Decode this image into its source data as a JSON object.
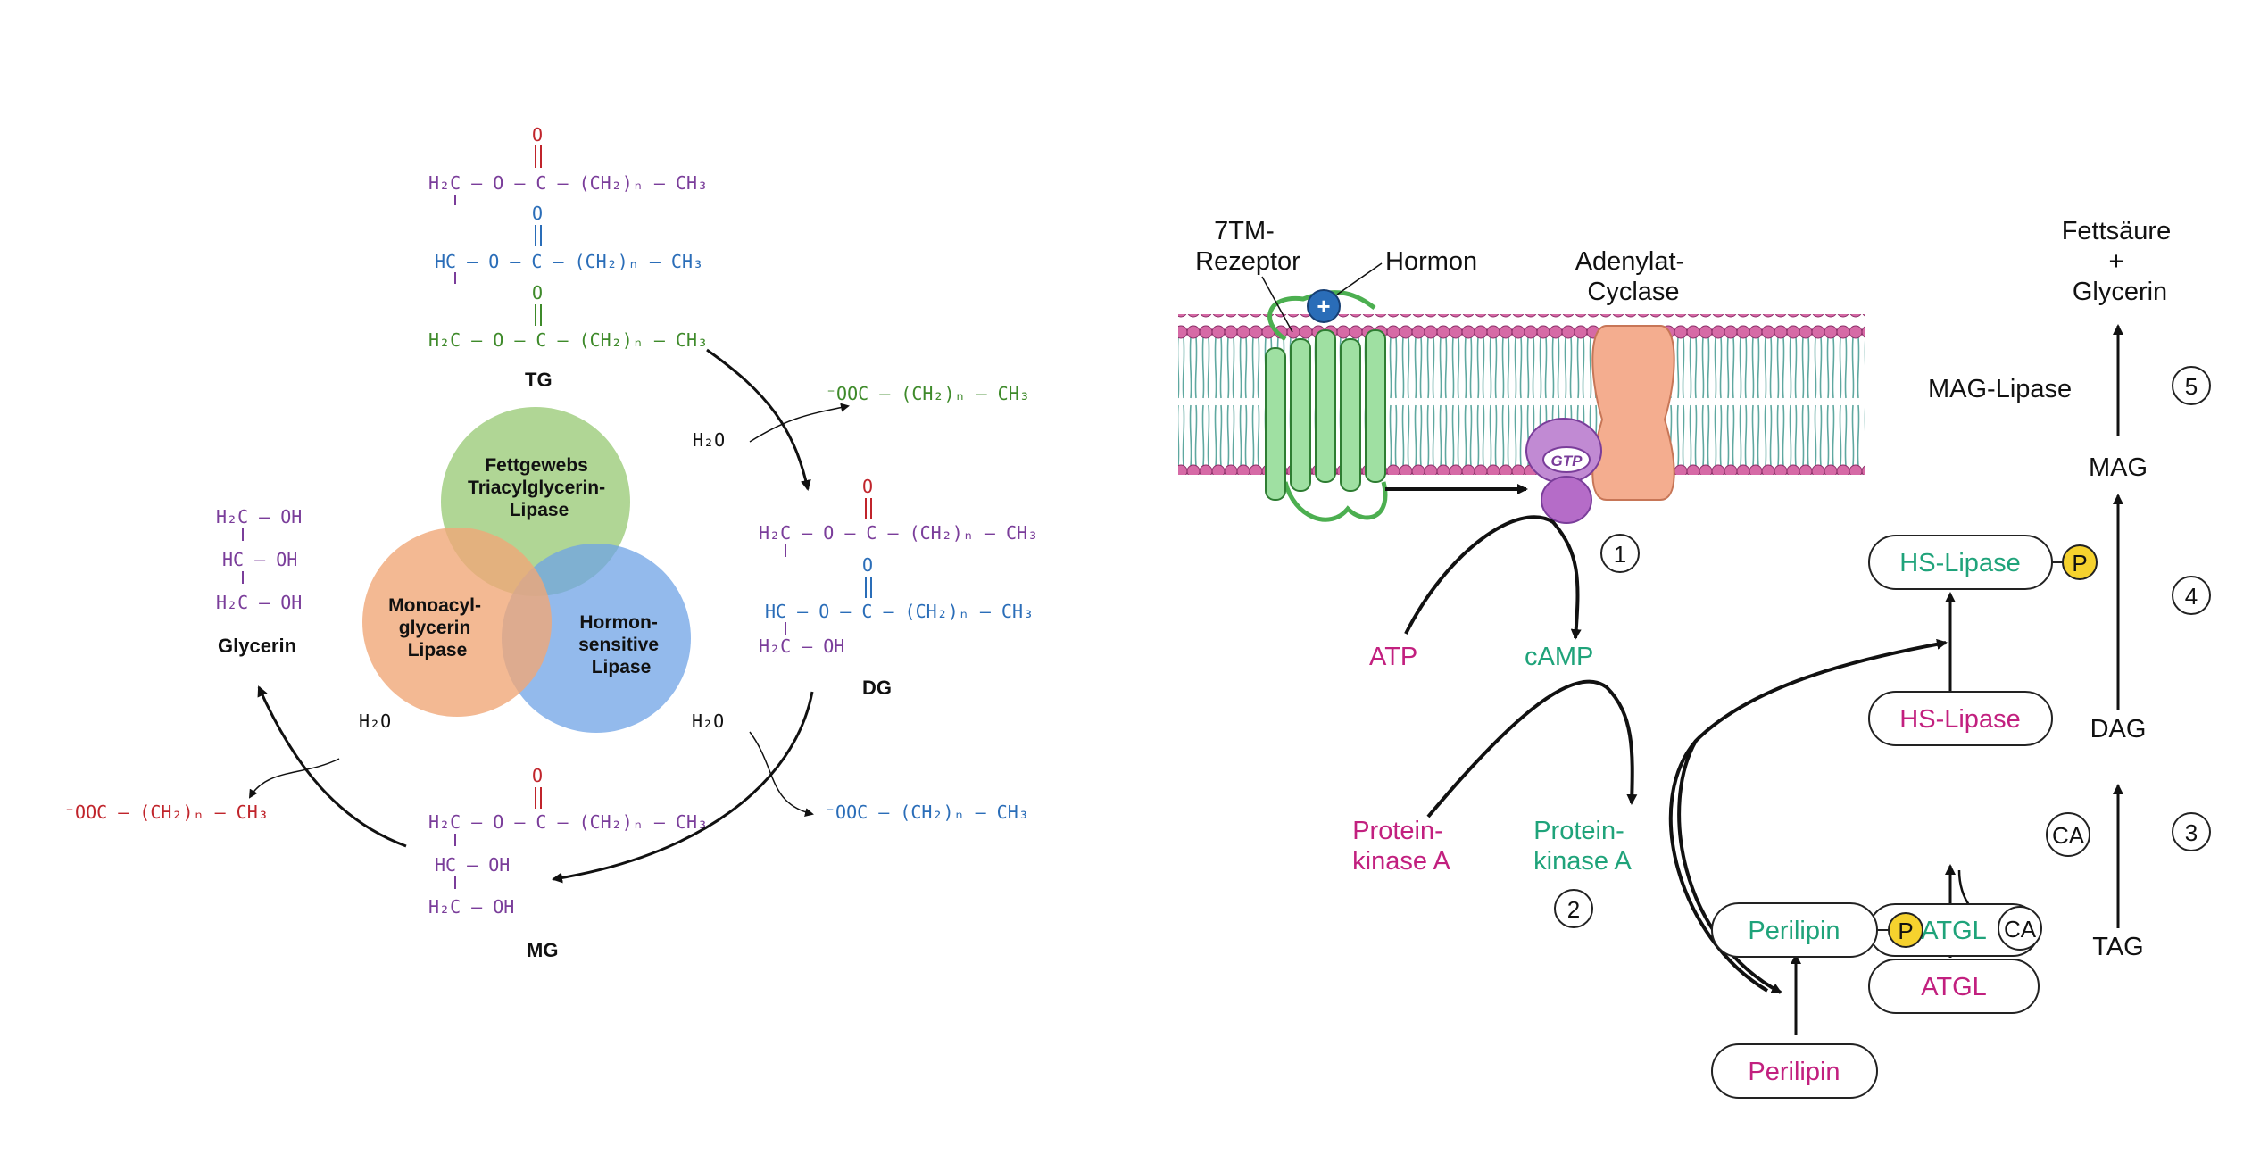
{
  "left_diagram": {
    "structures": {
      "tg": {
        "label": "TG",
        "row1": "H₂C — O — C — (CH₂)ₙ — CH₃",
        "row2": "HC — O — C — (CH₂)ₙ — CH₃",
        "row3": "H₂C — O — C — (CH₂)ₙ — CH₃",
        "carbonyl": "O"
      },
      "dg": {
        "label": "DG",
        "row1": "H₂C — O — C — (CH₂)ₙ — CH₃",
        "row2": "HC — O — C — (CH₂)ₙ — CH₃",
        "row3": "H₂C — OH",
        "carbonyl": "O"
      },
      "mg": {
        "label": "MG",
        "row1": "H₂C — O — C — (CH₂)ₙ — CH₃",
        "row2": "HC — OH",
        "row3": "H₂C — OH",
        "carbonyl": "O"
      },
      "glycerin": {
        "label": "Glycerin",
        "row1": "H₂C — OH",
        "row2": "HC — OH",
        "row3": "H₂C — OH"
      }
    },
    "water": "H₂O",
    "fatty_acid_green": "⁻OOC — (CH₂)ₙ — CH₃",
    "fatty_acid_blue": "⁻OOC — (CH₂)ₙ — CH₃",
    "fatty_acid_red": "⁻OOC — (CH₂)ₙ — CH₃",
    "enzymes": {
      "atgl": [
        "Fettgewebs",
        "Triacylglycerin-",
        "Lipase"
      ],
      "hsl": [
        "Hormon-",
        "sensitive",
        "Lipase"
      ],
      "mgl": [
        "Monoacyl-",
        "glycerin",
        "Lipase"
      ]
    }
  },
  "right_diagram": {
    "receptor": [
      "7TM-",
      "Rezeptor"
    ],
    "hormone": "Hormon",
    "plus": "+",
    "adenylate_cyclase": [
      "Adenylat-",
      "Cyclase"
    ],
    "gtp": "GTP",
    "atp": "ATP",
    "camp": "cAMP",
    "pka_inactive": [
      "Protein-",
      "kinase A"
    ],
    "pka_active": [
      "Protein-",
      "kinase A"
    ],
    "perilipin_inactive": "Perilipin",
    "perilipin_active": "Perilipin",
    "phospho": "P",
    "hsl_inactive": "HS-Lipase",
    "hsl_active": "HS-Lipase",
    "atgl_inactive": "ATGL",
    "atgl_active": "ATGL",
    "ca": "CA",
    "pathway": {
      "product": [
        "Fettsäure",
        "+",
        "Glycerin"
      ],
      "mag_lipase": "MAG-Lipase",
      "mag": "MAG",
      "dag": "DAG",
      "tag": "TAG"
    },
    "steps": [
      "1",
      "2",
      "3",
      "4",
      "5"
    ]
  },
  "colors": {
    "purple": "#7a3d9a",
    "red": "#c0242b",
    "blue": "#2a6db8",
    "green": "#3e8a2a",
    "magenta": "#c2207f",
    "teal": "#1fa37a",
    "atgl_circle": "#9ccc7a",
    "hsl_circle": "#6fa3e6",
    "mgl_circle": "#f0a878",
    "head": "#d66aa6",
    "tail": "#5fa8a0",
    "receptor": "#9fe0a2",
    "cyclase": "#f4ad8f",
    "gprotein": "#c18ad3",
    "phospho_fill": "#f6d22e"
  }
}
